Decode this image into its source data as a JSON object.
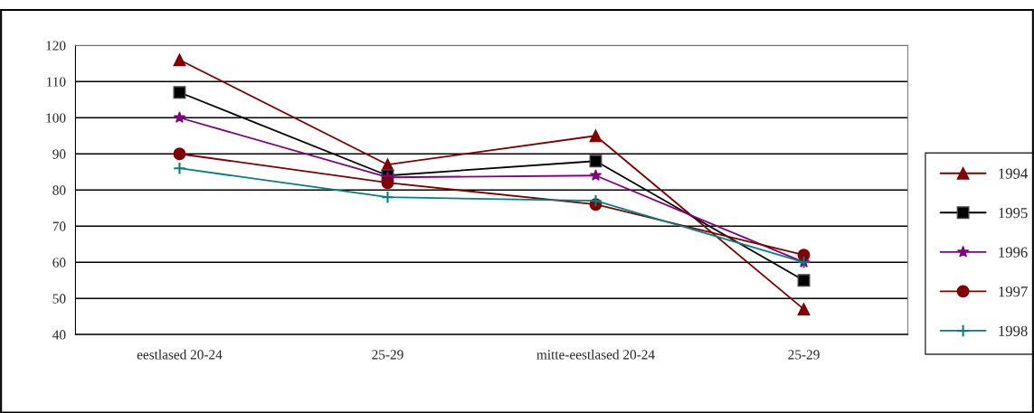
{
  "chart_data": {
    "type": "line",
    "categories": [
      "eestlased 20-24",
      "25-29",
      "mitte-eestlased 20-24",
      "25-29"
    ],
    "series": [
      {
        "name": "1994",
        "color": "#800000",
        "marker": "triangle",
        "values": [
          116,
          87,
          95,
          47
        ]
      },
      {
        "name": "1995",
        "color": "#000000",
        "marker": "square",
        "values": [
          107,
          84,
          88,
          55
        ]
      },
      {
        "name": "1996",
        "color": "#800080",
        "marker": "star",
        "values": [
          100,
          83.5,
          84,
          60
        ]
      },
      {
        "name": "1997",
        "color": "#800000",
        "marker": "circle",
        "values": [
          90,
          82,
          76,
          62
        ]
      },
      {
        "name": "1998",
        "color": "#008080",
        "marker": "cross",
        "values": [
          86,
          78,
          77,
          60
        ]
      }
    ],
    "ylim": [
      40,
      120
    ],
    "yticks": [
      40,
      50,
      60,
      70,
      80,
      90,
      100,
      110,
      120
    ],
    "grid": "y",
    "legend": "right",
    "line_style": "solid"
  }
}
